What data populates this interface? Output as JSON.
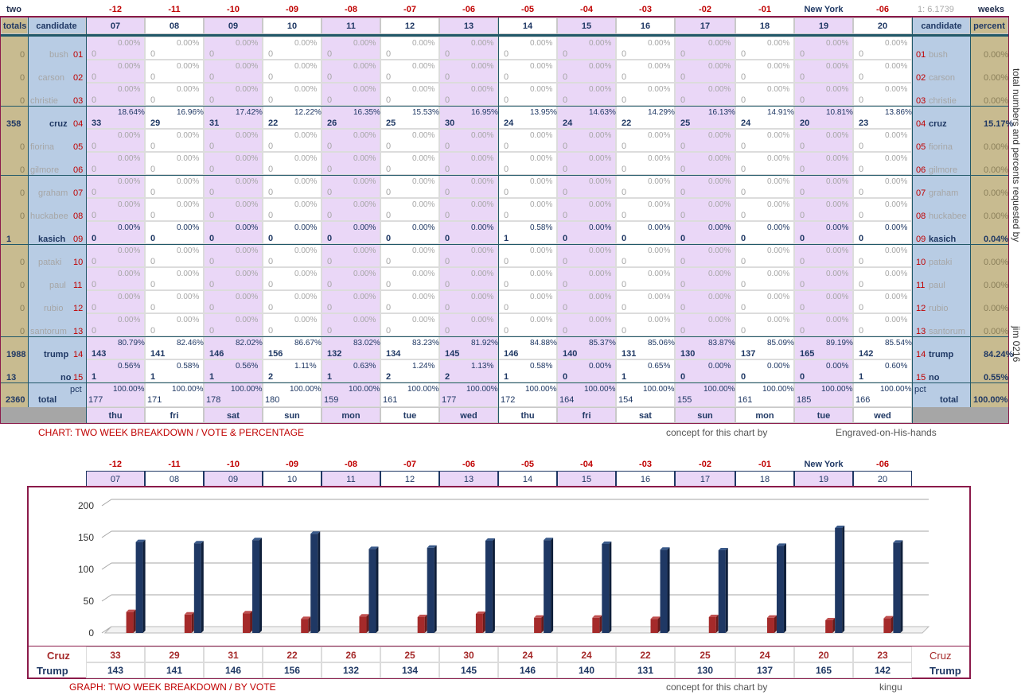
{
  "top_left_label": "two",
  "top_right_label": "weeks",
  "ratio_label": "1: 6.1739",
  "offsets": [
    "-12",
    "-11",
    "-10",
    "-09",
    "-08",
    "-07",
    "-06",
    "-05",
    "-04",
    "-03",
    "-02",
    "-01",
    "New York",
    "-06"
  ],
  "dates": [
    "07",
    "08",
    "09",
    "10",
    "11",
    "12",
    "13",
    "14",
    "15",
    "16",
    "17",
    "18",
    "19",
    "20"
  ],
  "days": [
    "thu",
    "fri",
    "sat",
    "sun",
    "mon",
    "tue",
    "wed",
    "thu",
    "fri",
    "sat",
    "sun",
    "mon",
    "tue",
    "wed"
  ],
  "headers": {
    "totals": "totals",
    "candidate": "candidate",
    "candidate_right": "candidate",
    "percent": "percent"
  },
  "candidates": [
    {
      "name": "bush",
      "num": "01",
      "total": "0",
      "pct": "0.00%",
      "active": false,
      "votes": [
        0,
        0,
        0,
        0,
        0,
        0,
        0,
        0,
        0,
        0,
        0,
        0,
        0,
        0
      ],
      "pcts": [
        "0.00%",
        "0.00%",
        "0.00%",
        "0.00%",
        "0.00%",
        "0.00%",
        "0.00%",
        "0.00%",
        "0.00%",
        "0.00%",
        "0.00%",
        "0.00%",
        "0.00%",
        "0.00%"
      ]
    },
    {
      "name": "carson",
      "num": "02",
      "total": "0",
      "pct": "0.00%",
      "active": false,
      "votes": [
        0,
        0,
        0,
        0,
        0,
        0,
        0,
        0,
        0,
        0,
        0,
        0,
        0,
        0
      ],
      "pcts": [
        "0.00%",
        "0.00%",
        "0.00%",
        "0.00%",
        "0.00%",
        "0.00%",
        "0.00%",
        "0.00%",
        "0.00%",
        "0.00%",
        "0.00%",
        "0.00%",
        "0.00%",
        "0.00%"
      ]
    },
    {
      "name": "christie",
      "num": "03",
      "total": "0",
      "pct": "0.00%",
      "active": false,
      "votes": [
        0,
        0,
        0,
        0,
        0,
        0,
        0,
        0,
        0,
        0,
        0,
        0,
        0,
        0
      ],
      "pcts": [
        "0.00%",
        "0.00%",
        "0.00%",
        "0.00%",
        "0.00%",
        "0.00%",
        "0.00%",
        "0.00%",
        "0.00%",
        "0.00%",
        "0.00%",
        "0.00%",
        "0.00%",
        "0.00%"
      ]
    },
    {
      "name": "cruz",
      "num": "04",
      "total": "358",
      "pct": "15.17%",
      "active": true,
      "votes": [
        33,
        29,
        31,
        22,
        26,
        25,
        30,
        24,
        24,
        22,
        25,
        24,
        20,
        23
      ],
      "pcts": [
        "18.64%",
        "16.96%",
        "17.42%",
        "12.22%",
        "16.35%",
        "15.53%",
        "16.95%",
        "13.95%",
        "14.63%",
        "14.29%",
        "16.13%",
        "14.91%",
        "10.81%",
        "13.86%"
      ]
    },
    {
      "name": "fiorina",
      "num": "05",
      "total": "0",
      "pct": "0.00%",
      "active": false,
      "votes": [
        0,
        0,
        0,
        0,
        0,
        0,
        0,
        0,
        0,
        0,
        0,
        0,
        0,
        0
      ],
      "pcts": [
        "0.00%",
        "0.00%",
        "0.00%",
        "0.00%",
        "0.00%",
        "0.00%",
        "0.00%",
        "0.00%",
        "0.00%",
        "0.00%",
        "0.00%",
        "0.00%",
        "0.00%",
        "0.00%"
      ]
    },
    {
      "name": "gilmore",
      "num": "06",
      "total": "0",
      "pct": "0.00%",
      "active": false,
      "votes": [
        0,
        0,
        0,
        0,
        0,
        0,
        0,
        0,
        0,
        0,
        0,
        0,
        0,
        0
      ],
      "pcts": [
        "0.00%",
        "0.00%",
        "0.00%",
        "0.00%",
        "0.00%",
        "0.00%",
        "0.00%",
        "0.00%",
        "0.00%",
        "0.00%",
        "0.00%",
        "0.00%",
        "0.00%",
        "0.00%"
      ]
    },
    {
      "name": "graham",
      "num": "07",
      "total": "0",
      "pct": "0.00%",
      "active": false,
      "votes": [
        0,
        0,
        0,
        0,
        0,
        0,
        0,
        0,
        0,
        0,
        0,
        0,
        0,
        0
      ],
      "pcts": [
        "0.00%",
        "0.00%",
        "0.00%",
        "0.00%",
        "0.00%",
        "0.00%",
        "0.00%",
        "0.00%",
        "0.00%",
        "0.00%",
        "0.00%",
        "0.00%",
        "0.00%",
        "0.00%"
      ]
    },
    {
      "name": "huckabee",
      "num": "08",
      "total": "0",
      "pct": "0.00%",
      "active": false,
      "votes": [
        0,
        0,
        0,
        0,
        0,
        0,
        0,
        0,
        0,
        0,
        0,
        0,
        0,
        0
      ],
      "pcts": [
        "0.00%",
        "0.00%",
        "0.00%",
        "0.00%",
        "0.00%",
        "0.00%",
        "0.00%",
        "0.00%",
        "0.00%",
        "0.00%",
        "0.00%",
        "0.00%",
        "0.00%",
        "0.00%"
      ]
    },
    {
      "name": "kasich",
      "num": "09",
      "total": "1",
      "pct": "0.04%",
      "active": true,
      "votes": [
        0,
        0,
        0,
        0,
        0,
        0,
        0,
        1,
        0,
        0,
        0,
        0,
        0,
        0
      ],
      "pcts": [
        "0.00%",
        "0.00%",
        "0.00%",
        "0.00%",
        "0.00%",
        "0.00%",
        "0.00%",
        "0.58%",
        "0.00%",
        "0.00%",
        "0.00%",
        "0.00%",
        "0.00%",
        "0.00%"
      ]
    },
    {
      "name": "pataki",
      "num": "10",
      "total": "0",
      "pct": "0.00%",
      "active": false,
      "votes": [
        0,
        0,
        0,
        0,
        0,
        0,
        0,
        0,
        0,
        0,
        0,
        0,
        0,
        0
      ],
      "pcts": [
        "0.00%",
        "0.00%",
        "0.00%",
        "0.00%",
        "0.00%",
        "0.00%",
        "0.00%",
        "0.00%",
        "0.00%",
        "0.00%",
        "0.00%",
        "0.00%",
        "0.00%",
        "0.00%"
      ]
    },
    {
      "name": "paul",
      "num": "11",
      "total": "0",
      "pct": "0.00%",
      "active": false,
      "votes": [
        0,
        0,
        0,
        0,
        0,
        0,
        0,
        0,
        0,
        0,
        0,
        0,
        0,
        0
      ],
      "pcts": [
        "0.00%",
        "0.00%",
        "0.00%",
        "0.00%",
        "0.00%",
        "0.00%",
        "0.00%",
        "0.00%",
        "0.00%",
        "0.00%",
        "0.00%",
        "0.00%",
        "0.00%",
        "0.00%"
      ]
    },
    {
      "name": "rubio",
      "num": "12",
      "total": "0",
      "pct": "0.00%",
      "active": false,
      "votes": [
        0,
        0,
        0,
        0,
        0,
        0,
        0,
        0,
        0,
        0,
        0,
        0,
        0,
        0
      ],
      "pcts": [
        "0.00%",
        "0.00%",
        "0.00%",
        "0.00%",
        "0.00%",
        "0.00%",
        "0.00%",
        "0.00%",
        "0.00%",
        "0.00%",
        "0.00%",
        "0.00%",
        "0.00%",
        "0.00%"
      ]
    },
    {
      "name": "santorum",
      "num": "13",
      "total": "0",
      "pct": "0.00%",
      "active": false,
      "votes": [
        0,
        0,
        0,
        0,
        0,
        0,
        0,
        0,
        0,
        0,
        0,
        0,
        0,
        0
      ],
      "pcts": [
        "0.00%",
        "0.00%",
        "0.00%",
        "0.00%",
        "0.00%",
        "0.00%",
        "0.00%",
        "0.00%",
        "0.00%",
        "0.00%",
        "0.00%",
        "0.00%",
        "0.00%",
        "0.00%"
      ]
    },
    {
      "name": "trump",
      "num": "14",
      "total": "1988",
      "pct": "84.24%",
      "active": true,
      "votes": [
        143,
        141,
        146,
        156,
        132,
        134,
        145,
        146,
        140,
        131,
        130,
        137,
        165,
        142
      ],
      "pcts": [
        "80.79%",
        "82.46%",
        "82.02%",
        "86.67%",
        "83.02%",
        "83.23%",
        "81.92%",
        "84.88%",
        "85.37%",
        "85.06%",
        "83.87%",
        "85.09%",
        "89.19%",
        "85.54%"
      ]
    },
    {
      "name": "no",
      "num": "15",
      "total": "13",
      "pct": "0.55%",
      "active": true,
      "votes": [
        1,
        1,
        1,
        2,
        1,
        2,
        2,
        1,
        0,
        1,
        0,
        0,
        0,
        1
      ],
      "pcts": [
        "0.56%",
        "0.58%",
        "0.56%",
        "1.11%",
        "0.63%",
        "1.24%",
        "1.13%",
        "0.58%",
        "0.00%",
        "0.65%",
        "0.00%",
        "0.00%",
        "0.00%",
        "0.60%"
      ]
    }
  ],
  "totals_row": {
    "grand": "2360",
    "label": "total",
    "pct_label": "pct",
    "percent": "100.00%",
    "values": [
      177,
      171,
      178,
      180,
      159,
      161,
      177,
      172,
      164,
      154,
      155,
      161,
      185,
      166
    ],
    "pcts": [
      "100.00%",
      "100.00%",
      "100.00%",
      "100.00%",
      "100.00%",
      "100.00%",
      "100.00%",
      "100.00%",
      "100.00%",
      "100.00%",
      "100.00%",
      "100.00%",
      "100.00%",
      "100.00%"
    ]
  },
  "side_note_1": "total numbers and percents requested by",
  "side_note_2": "jim 0216",
  "chart1_caption": "CHART: TWO WEEK BREAKDOWN / VOTE & PERCENTAGE",
  "concept_text": "concept for this chart by",
  "chart1_credit": "Engraved-on-His-hands",
  "chart2_caption": "GRAPH: TWO WEEK BREAKDOWN / BY VOTE",
  "chart2_credit": "kingu",
  "chart_data": {
    "type": "bar",
    "categories": [
      "07",
      "08",
      "09",
      "10",
      "11",
      "12",
      "13",
      "14",
      "15",
      "16",
      "17",
      "18",
      "19",
      "20"
    ],
    "series": [
      {
        "name": "Cruz",
        "values": [
          33,
          29,
          31,
          22,
          26,
          25,
          30,
          24,
          24,
          22,
          25,
          24,
          20,
          23
        ],
        "color": "#a52a2a"
      },
      {
        "name": "Trump",
        "values": [
          143,
          141,
          146,
          156,
          132,
          134,
          145,
          146,
          140,
          131,
          130,
          137,
          165,
          142
        ],
        "color": "#1f3864"
      }
    ],
    "ylim": [
      0,
      200
    ],
    "yticks": [
      0,
      50,
      100,
      150,
      200
    ],
    "grid": true
  }
}
